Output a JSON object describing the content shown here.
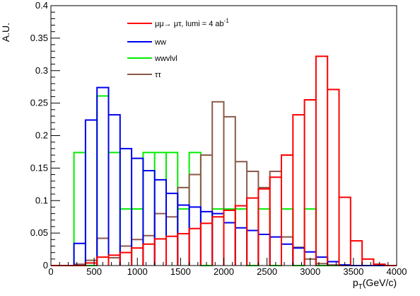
{
  "chart_data": {
    "type": "histogram",
    "xlabel": "p_T(GeV/c)",
    "xlabel_main": "p",
    "xlabel_sub": "T",
    "xlabel_tail": "(GeV/c)",
    "ylabel": "A.U.",
    "xlim": [
      0,
      4000
    ],
    "ylim": [
      0,
      0.4
    ],
    "x_ticks": [
      0,
      500,
      1000,
      1500,
      2000,
      2500,
      3000,
      3500,
      4000
    ],
    "x_tick_labels": [
      "0",
      "500",
      "1000",
      "1500",
      "2000",
      "2500",
      "3000",
      "3500",
      "4000"
    ],
    "y_ticks": [
      0,
      0.05,
      0.1,
      0.15,
      0.2,
      0.25,
      0.3,
      0.35,
      0.4
    ],
    "y_tick_labels": [
      "0",
      "0.05",
      "0.1",
      "0.15",
      "0.2",
      "0.25",
      "0.3",
      "0.35",
      "0.4"
    ],
    "bin_width": 133.333,
    "bin_edges_start": 0,
    "n_bins": 30,
    "legend_position": "top-center",
    "series": [
      {
        "name": "μμ→ μτ, lumi = 4 ab",
        "name_sup": "-1",
        "color": "#ff0000",
        "values": [
          0,
          0,
          0,
          0.004,
          0.013,
          0.016,
          0.02,
          0.027,
          0.033,
          0.041,
          0.045,
          0.049,
          0.057,
          0.065,
          0.075,
          0.085,
          0.092,
          0.104,
          0.118,
          0.136,
          0.17,
          0.232,
          0.255,
          0.322,
          0.271,
          0.105,
          0.038,
          0.01,
          0.002,
          0
        ]
      },
      {
        "name": "ww",
        "color": "#0000ee",
        "values": [
          0,
          0,
          0.034,
          0.224,
          0.274,
          0.232,
          0.18,
          0.165,
          0.146,
          0.132,
          0.111,
          0.093,
          0.09,
          0.083,
          0.08,
          0.066,
          0.058,
          0.054,
          0.048,
          0.044,
          0.033,
          0.027,
          0.021,
          0.013,
          0.006,
          0.001,
          0,
          0,
          0,
          0
        ]
      },
      {
        "name": "wwvlvl",
        "color": "#00ee00",
        "values": [
          0,
          0,
          0.174,
          0,
          0.261,
          0.174,
          0.087,
          0.087,
          0.174,
          0.174,
          0.174,
          0.087,
          0.174,
          0.0,
          0.087,
          0.087,
          0.087,
          0,
          0.087,
          0,
          0.087,
          0,
          0.087,
          0,
          0,
          0,
          0,
          0,
          0,
          0
        ]
      },
      {
        "name": "ττ",
        "color": "#8b5a4a",
        "values": [
          0,
          0,
          0.002,
          0.008,
          0.042,
          0.012,
          0.03,
          0.04,
          0.046,
          0.08,
          0.075,
          0.12,
          0.14,
          0.17,
          0.252,
          0.229,
          0.16,
          0.145,
          0.12,
          0.145,
          0.044,
          0.028,
          0.01,
          0.003,
          0.001,
          0,
          0,
          0,
          0,
          0
        ]
      }
    ]
  }
}
